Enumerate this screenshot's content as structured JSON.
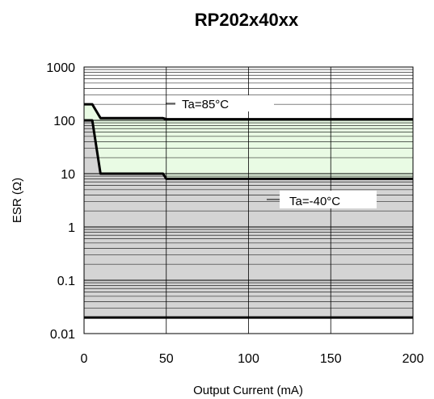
{
  "chart_data": {
    "type": "area",
    "title": "RP202x40xx",
    "xlabel": "Output Current (mA)",
    "ylabel": "ESR (Ω)",
    "xlim": [
      0,
      200
    ],
    "ylim": [
      0.01,
      1000
    ],
    "yscale": "log",
    "grid": true,
    "x_ticks": [
      0,
      50,
      100,
      150,
      200
    ],
    "x_tick_labels": [
      "0",
      "50",
      "100",
      "150",
      "200"
    ],
    "y_ticks": [
      0.01,
      0.1,
      1,
      10,
      100,
      1000
    ],
    "y_tick_labels": [
      "0.01",
      "0.1",
      "1",
      "10",
      "100",
      "1000"
    ],
    "series": [
      {
        "name": "Ta=85°C",
        "fill": "#e9fbe4",
        "upper": {
          "x": [
            0,
            5,
            10,
            48,
            50,
            200
          ],
          "y": [
            200,
            200,
            110,
            110,
            105,
            105
          ]
        },
        "lower_bound": 0.02
      },
      {
        "name": "Ta=-40°C",
        "fill": "#d4d4d4",
        "upper": {
          "x": [
            0,
            5,
            10,
            48,
            50,
            200
          ],
          "y": [
            100,
            100,
            10,
            10,
            8,
            8
          ]
        },
        "lower_bound": 0.02
      }
    ],
    "min_esr_line": 0.02,
    "annotations": [
      {
        "text": "Ta=85°C",
        "series": "Ta=85°C"
      },
      {
        "text": "Ta=-40°C",
        "series": "Ta=-40°C"
      }
    ]
  }
}
